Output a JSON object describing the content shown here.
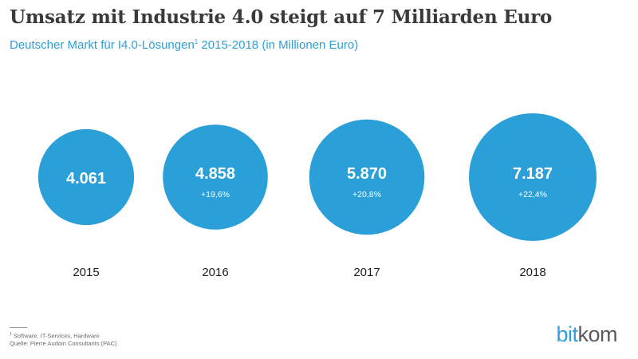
{
  "title": "Umsatz mit Industrie 4.0 steigt auf 7 Milliarden Euro",
  "subtitle": {
    "text_before": "Deutscher Markt für I4.0-Lösungen",
    "sup": "1",
    "text_after": " 2015-2018 (in Millionen Euro)"
  },
  "colors": {
    "bubble": "#2a9fd8",
    "year_text": "#1d1d1b",
    "value_text": "#ffffff",
    "logo_accent": "#2f9fd8"
  },
  "chart_data": {
    "type": "bubble",
    "title": "Umsatz mit Industrie 4.0 steigt auf 7 Milliarden Euro",
    "subtitle": "Deutscher Markt für I4.0-Lösungen¹ 2015-2018 (in Millionen Euro)",
    "unit": "Millionen Euro",
    "categories": [
      "2015",
      "2016",
      "2017",
      "2018"
    ],
    "values": [
      4061,
      4858,
      5870,
      7187
    ],
    "value_labels": [
      "4.061",
      "4.858",
      "5.870",
      "7.187"
    ],
    "growth_labels": [
      "",
      "+19,6%",
      "+20,8%",
      "+22,4%"
    ]
  },
  "footnotes": {
    "note1_sup": "1",
    "note1": " Software, IT-Services, Hardware",
    "source": "Quelle: Pierre Audoin Consultants (PAC)"
  },
  "logo": {
    "part1": "bit",
    "part2": "kom"
  }
}
